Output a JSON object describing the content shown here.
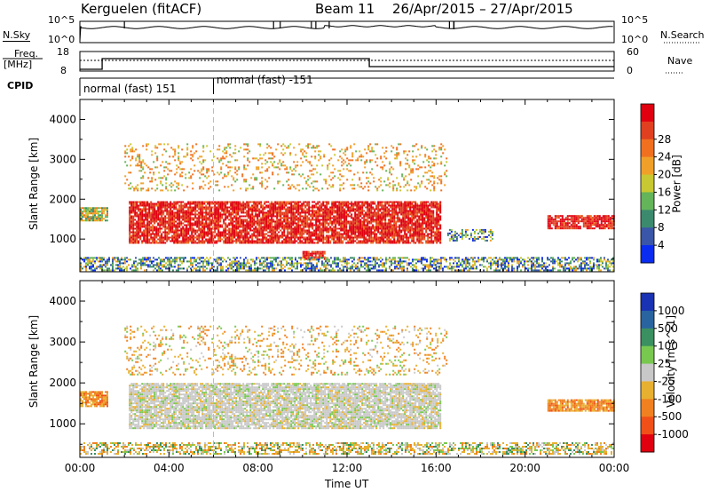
{
  "header": {
    "station": "Kerguelen (fitACF)",
    "beam": "Beam 11",
    "date_range": "26/Apr/2015 – 27/Apr/2015"
  },
  "top_panels": {
    "nsky_label": "N.Sky",
    "nsearch_label": "N.Search",
    "nsky_ticks": [
      "10^5",
      "10^0"
    ],
    "nsearch_ticks": [
      "10^5",
      "10^0"
    ],
    "freq_label": "Freq.",
    "freq_unit": "[MHz]",
    "freq_ticks": [
      "18",
      "8"
    ],
    "nave_label": "Nave",
    "nave_ticks": [
      "60",
      "0"
    ],
    "cpid_label": "CPID",
    "cpid_segments": [
      {
        "label": "normal (fast) 151",
        "start_hour": 0,
        "end_hour": 6
      },
      {
        "label": "normal (fast) -151",
        "start_hour": 6,
        "end_hour": 24
      }
    ]
  },
  "chart_data": [
    {
      "type": "heatmap",
      "title": "",
      "xlabel": "Time UT",
      "ylabel": "Slant Range [km]",
      "x_ticks": [
        "00:00",
        "04:00",
        "08:00",
        "12:00",
        "16:00",
        "20:00",
        "00:00"
      ],
      "x_range_hours": [
        0,
        24
      ],
      "y_ticks": [
        1000,
        2000,
        3000,
        4000
      ],
      "y_range_km": [
        180,
        4500
      ],
      "colorbar": {
        "label": "Power [dB]",
        "tick_labels": [
          "4",
          "8",
          "12",
          "16",
          "20",
          "24",
          "28"
        ],
        "colors": [
          "#0a2cf0",
          "#3a56a8",
          "#3c8a6e",
          "#64b45a",
          "#c8c832",
          "#f0a028",
          "#f07020",
          "#e04020",
          "#e00010"
        ]
      },
      "regions": [
        {
          "t0": 0.0,
          "t1": 1.2,
          "r0": 1450,
          "r1": 1800,
          "level": "mid"
        },
        {
          "t0": 2.2,
          "t1": 16.2,
          "r0": 900,
          "r1": 1950,
          "level": "high"
        },
        {
          "t0": 10.0,
          "t1": 11.0,
          "r0": 520,
          "r1": 700,
          "level": "high"
        },
        {
          "t0": 2.0,
          "t1": 16.5,
          "r0": 2200,
          "r1": 3400,
          "level": "scatter"
        },
        {
          "t0": 0.0,
          "t1": 24.0,
          "r0": 200,
          "r1": 550,
          "level": "low"
        },
        {
          "t0": 16.5,
          "t1": 18.5,
          "r0": 950,
          "r1": 1250,
          "level": "low"
        },
        {
          "t0": 21.0,
          "t1": 24.0,
          "r0": 1250,
          "r1": 1600,
          "level": "high"
        }
      ]
    },
    {
      "type": "heatmap",
      "title": "",
      "xlabel": "Time UT",
      "ylabel": "Slant Range [km]",
      "x_ticks": [
        "00:00",
        "04:00",
        "08:00",
        "12:00",
        "16:00",
        "20:00",
        "00:00"
      ],
      "x_range_hours": [
        0,
        24
      ],
      "y_ticks": [
        1000,
        2000,
        3000,
        4000
      ],
      "y_range_km": [
        180,
        4500
      ],
      "colorbar": {
        "label": "Velocity [m s^-1]",
        "tick_labels": [
          "1000",
          "500",
          "100",
          "25",
          "-25",
          "-100",
          "-500",
          "-1000"
        ],
        "colors": [
          "#1a32b4",
          "#2a64a0",
          "#3a9060",
          "#78c850",
          "#c8c8c8",
          "#e8b030",
          "#f08020",
          "#f05018",
          "#e00010"
        ]
      },
      "regions": [
        {
          "t0": 0.0,
          "t1": 1.2,
          "r0": 1450,
          "r1": 1800,
          "level": "neg"
        },
        {
          "t0": 2.2,
          "t1": 16.2,
          "r0": 900,
          "r1": 2000,
          "level": "ground"
        },
        {
          "t0": 2.0,
          "t1": 16.5,
          "r0": 2200,
          "r1": 3400,
          "level": "scatter"
        },
        {
          "t0": 0.0,
          "t1": 24.0,
          "r0": 250,
          "r1": 550,
          "level": "mixed"
        },
        {
          "t0": 21.0,
          "t1": 24.0,
          "r0": 1300,
          "r1": 1600,
          "level": "neg"
        }
      ]
    }
  ]
}
